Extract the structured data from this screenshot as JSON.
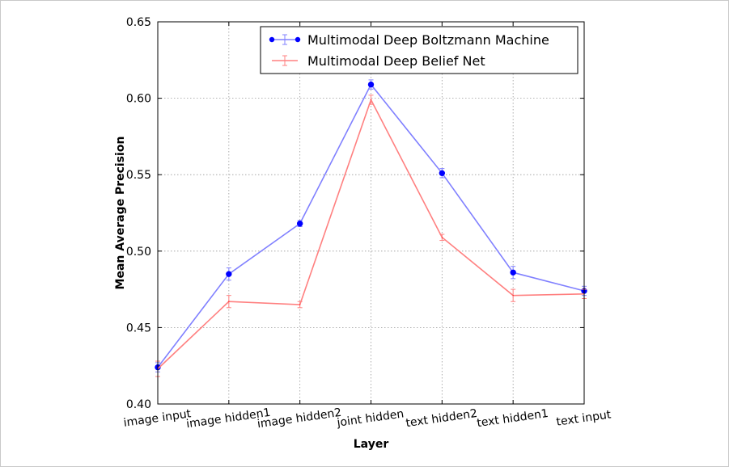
{
  "chart_data": {
    "type": "line",
    "title": "",
    "xlabel": "Layer",
    "ylabel": "Mean Average Precision",
    "categories": [
      "image input",
      "image hidden1",
      "image hidden2",
      "joint hidden",
      "text hidden2",
      "text hidden1",
      "text input"
    ],
    "ylim": [
      0.4,
      0.65
    ],
    "yticks": [
      "0.40",
      "0.45",
      "0.50",
      "0.55",
      "0.60",
      "0.65"
    ],
    "grid": true,
    "legend_position": "top-right",
    "series": [
      {
        "name": "Multimodal Deep Boltzmann Machine",
        "color": "#0000ff",
        "line_color": "#8080ff",
        "marker": "circle",
        "values": [
          0.424,
          0.485,
          0.518,
          0.609,
          0.551,
          0.486,
          0.474
        ],
        "errors": [
          0.003,
          0.004,
          0.002,
          0.003,
          0.003,
          0.004,
          0.003
        ]
      },
      {
        "name": "Multimodal Deep Belief Net",
        "color": "#ff0000",
        "line_color": "#ff8080",
        "marker": "none",
        "values": [
          0.423,
          0.467,
          0.465,
          0.599,
          0.509,
          0.471,
          0.472
        ],
        "errors": [
          0.005,
          0.004,
          0.002,
          0.003,
          0.002,
          0.004,
          0.003
        ]
      }
    ]
  }
}
